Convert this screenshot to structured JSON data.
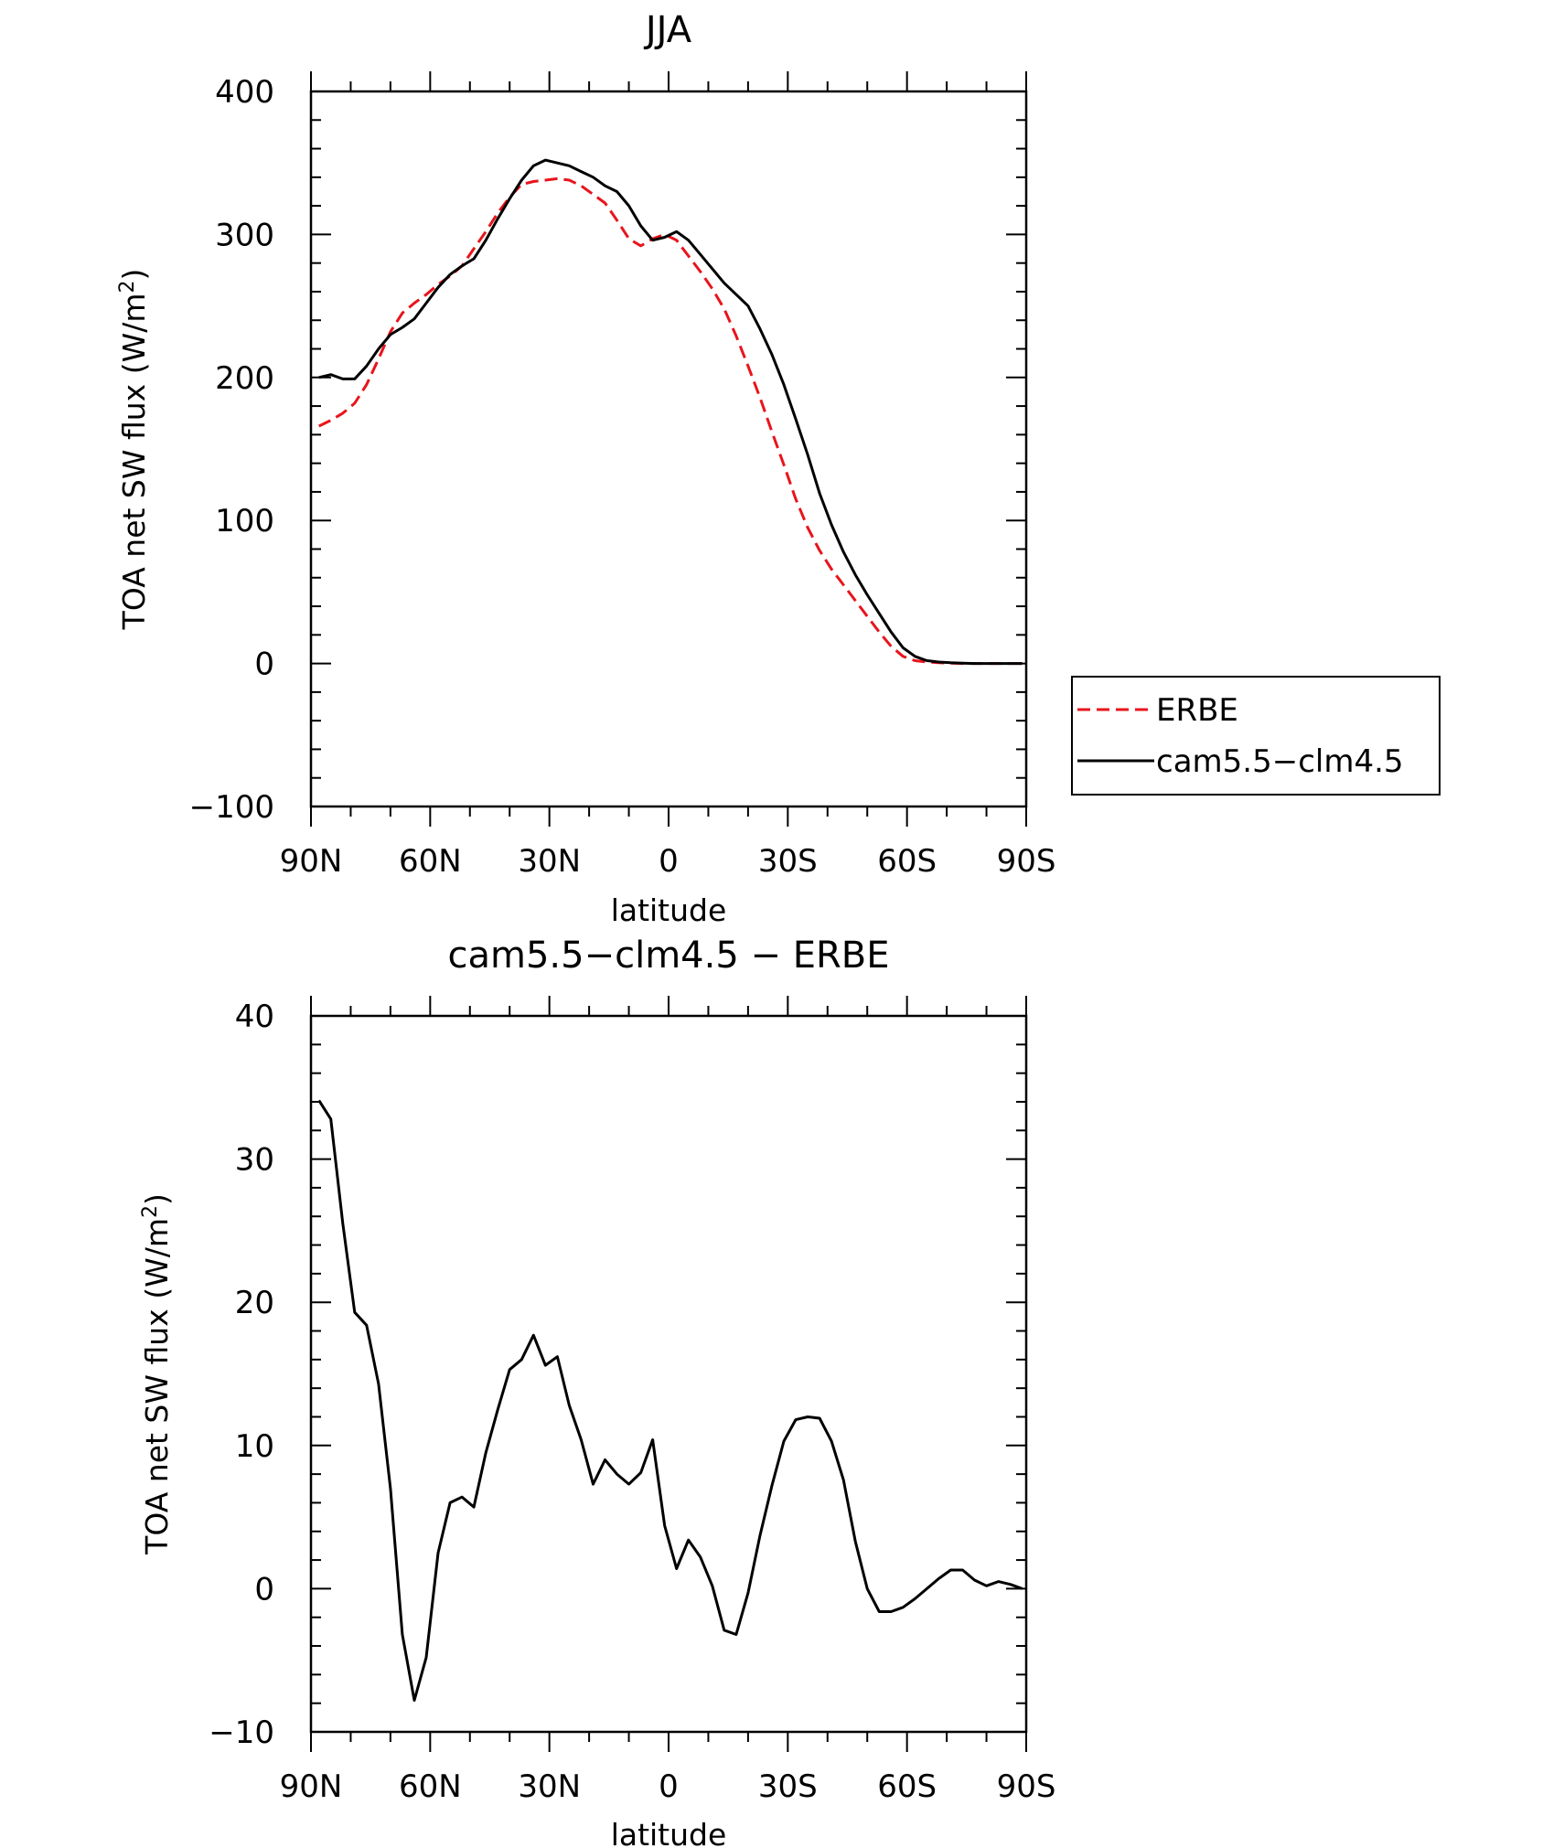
{
  "chart_data": [
    {
      "type": "line",
      "title": "JJA",
      "xlabel": "latitude",
      "ylabel": {
        "prefix": "TOA net SW flux (W/m",
        "superscript": "2",
        "suffix": ")"
      },
      "xlim": [
        90,
        -90
      ],
      "ylim": [
        -100,
        400
      ],
      "x_ticks": [
        {
          "value": 90,
          "label": "90N"
        },
        {
          "value": 60,
          "label": "60N"
        },
        {
          "value": 30,
          "label": "30N"
        },
        {
          "value": 0,
          "label": "0"
        },
        {
          "value": -30,
          "label": "30S"
        },
        {
          "value": -60,
          "label": "60S"
        },
        {
          "value": -90,
          "label": "90S"
        }
      ],
      "y_ticks": [
        {
          "value": 400,
          "label": "400"
        },
        {
          "value": 300,
          "label": "300"
        },
        {
          "value": 200,
          "label": "200"
        },
        {
          "value": 100,
          "label": "100"
        },
        {
          "value": 0,
          "label": "0"
        },
        {
          "value": -100,
          "label": "−100"
        }
      ],
      "legend_position": "right",
      "series": [
        {
          "name": "ERBE",
          "color": "#e8141c",
          "dash": "dashed",
          "x": [
            88,
            85,
            82,
            79,
            76,
            73,
            70,
            67,
            64,
            61,
            58,
            55,
            52,
            49,
            46,
            43,
            40,
            37,
            34,
            31,
            28,
            25,
            22,
            19,
            16,
            13,
            10,
            7,
            4,
            1,
            -2,
            -5,
            -8,
            -11,
            -14,
            -17,
            -20,
            -23,
            -26,
            -29,
            -32,
            -35,
            -38,
            -41,
            -44,
            -47,
            -50,
            -53,
            -56,
            -59,
            -62,
            -65,
            -68,
            -71,
            -74,
            -77,
            -80,
            -83,
            -86,
            -89
          ],
          "y": [
            166,
            170,
            175,
            182,
            195,
            213,
            232,
            245,
            252,
            258,
            265,
            271,
            278,
            290,
            302,
            315,
            326,
            335,
            337,
            338,
            339,
            338,
            334,
            328,
            322,
            310,
            297,
            292,
            297,
            300,
            296,
            285,
            274,
            262,
            248,
            229,
            208,
            186,
            162,
            139,
            115,
            95,
            79,
            66,
            55,
            44,
            33,
            22,
            12,
            5,
            2,
            1,
            0.5,
            0.2,
            0,
            0,
            0,
            0,
            0,
            0
          ]
        },
        {
          "name": "cam5.5−clm4.5",
          "color": "#000000",
          "dash": "solid",
          "x": [
            88,
            85,
            82,
            79,
            76,
            73,
            70,
            67,
            64,
            61,
            58,
            55,
            52,
            49,
            46,
            43,
            40,
            37,
            34,
            31,
            28,
            25,
            22,
            19,
            16,
            13,
            10,
            7,
            4,
            1,
            -2,
            -5,
            -8,
            -11,
            -14,
            -17,
            -20,
            -23,
            -26,
            -29,
            -32,
            -35,
            -38,
            -41,
            -44,
            -47,
            -50,
            -53,
            -56,
            -59,
            -62,
            -65,
            -68,
            -71,
            -74,
            -77,
            -80,
            -83,
            -86,
            -89
          ],
          "y": [
            200,
            202,
            199,
            199,
            208,
            220,
            230,
            235,
            241,
            252,
            263,
            272,
            278,
            283,
            296,
            311,
            325,
            338,
            348,
            352,
            350,
            348,
            344,
            340,
            334,
            330,
            320,
            306,
            296,
            298,
            302,
            296,
            286,
            276,
            266,
            258,
            250,
            234,
            216,
            195,
            171,
            146,
            119,
            97,
            78,
            62,
            48,
            35,
            22,
            11,
            5,
            2,
            1,
            0.5,
            0.2,
            0,
            0,
            0,
            0,
            0
          ]
        }
      ]
    },
    {
      "type": "line",
      "title": "cam5.5−clm4.5 − ERBE",
      "xlabel": "latitude",
      "ylabel": {
        "prefix": "TOA net SW flux (W/m",
        "superscript": "2",
        "suffix": ")"
      },
      "xlim": [
        90,
        -90
      ],
      "ylim": [
        -10,
        40
      ],
      "x_ticks": [
        {
          "value": 90,
          "label": "90N"
        },
        {
          "value": 60,
          "label": "60N"
        },
        {
          "value": 30,
          "label": "30N"
        },
        {
          "value": 0,
          "label": "0"
        },
        {
          "value": -30,
          "label": "30S"
        },
        {
          "value": -60,
          "label": "60S"
        },
        {
          "value": -90,
          "label": "90S"
        }
      ],
      "y_ticks": [
        {
          "value": 40,
          "label": "40"
        },
        {
          "value": 30,
          "label": "30"
        },
        {
          "value": 20,
          "label": "20"
        },
        {
          "value": 10,
          "label": "10"
        },
        {
          "value": 0,
          "label": "0"
        },
        {
          "value": -10,
          "label": "−10"
        }
      ],
      "series": [
        {
          "color": "#000000",
          "dash": "solid",
          "x": [
            88,
            85,
            82,
            79,
            76,
            73,
            70,
            67,
            64,
            61,
            58,
            55,
            52,
            49,
            46,
            43,
            40,
            37,
            34,
            31,
            28,
            25,
            22,
            19,
            16,
            13,
            10,
            7,
            4,
            1,
            -2,
            -5,
            -8,
            -11,
            -14,
            -17,
            -20,
            -23,
            -26,
            -29,
            -32,
            -35,
            -38,
            -41,
            -44,
            -47,
            -50,
            -53,
            -56,
            -59,
            -62,
            -65,
            -68,
            -71,
            -74,
            -77,
            -80,
            -83,
            -86,
            -89
          ],
          "y": [
            34.1,
            32.8,
            25.5,
            19.3,
            18.4,
            14.3,
            7.0,
            -3.2,
            -7.8,
            -4.8,
            2.5,
            6.0,
            6.4,
            5.7,
            9.5,
            12.5,
            15.3,
            16.0,
            17.7,
            15.6,
            16.2,
            12.8,
            10.4,
            7.3,
            9.0,
            8.0,
            7.3,
            8.1,
            10.4,
            4.4,
            1.4,
            3.4,
            2.2,
            0.2,
            -2.9,
            -3.2,
            -0.3,
            3.7,
            7.2,
            10.3,
            11.8,
            12.0,
            11.9,
            10.3,
            7.6,
            3.3,
            0.0,
            -1.6,
            -1.6,
            -1.3,
            -0.7,
            0.0,
            0.7,
            1.3,
            1.3,
            0.6,
            0.2,
            0.5,
            0.3,
            0.0
          ]
        }
      ]
    }
  ]
}
